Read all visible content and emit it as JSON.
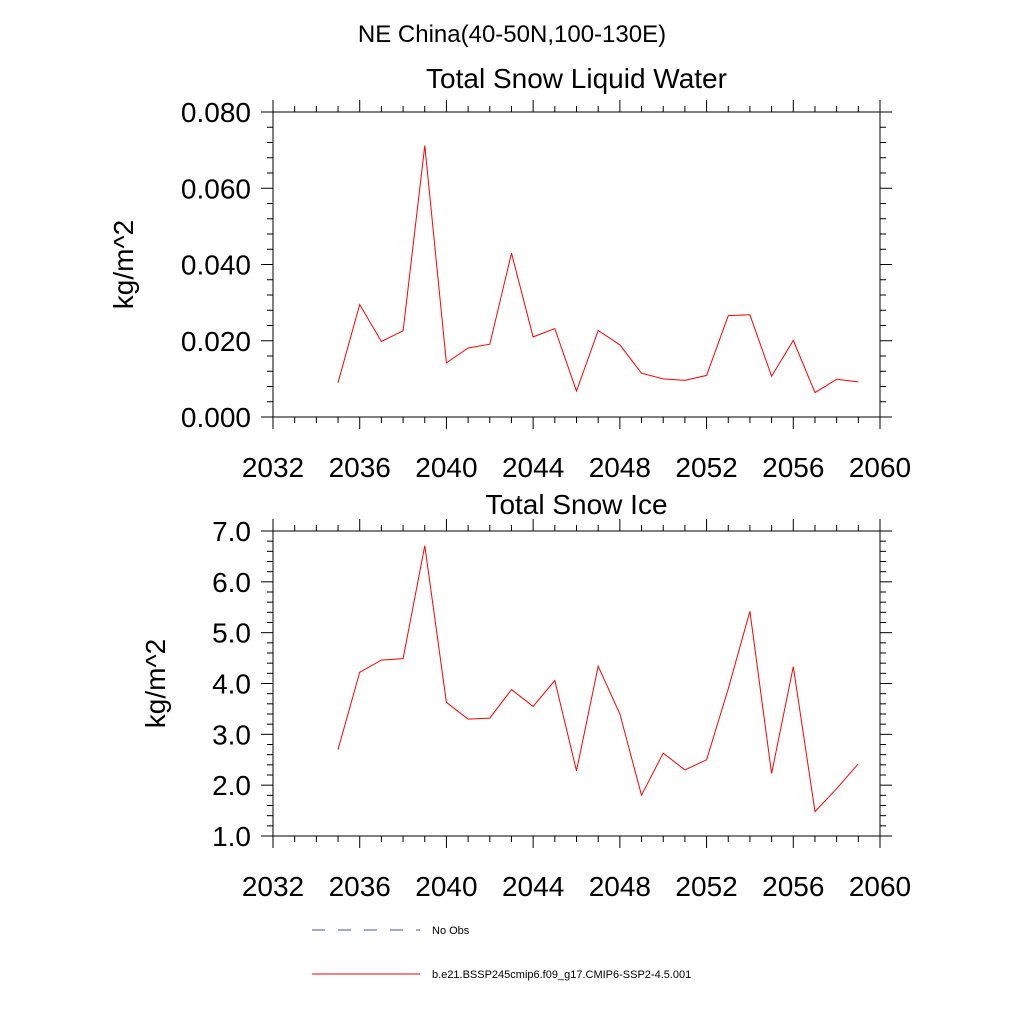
{
  "figure": {
    "suptitle": "NE China(40-50N,100-130E)"
  },
  "legend": {
    "entries": [
      {
        "label": "No Obs",
        "color": "#4a5a8a",
        "style": "dashed"
      },
      {
        "label": "b.e21.BSSP245cmip6.f09_g17.CMIP6-SSP2-4.5.001",
        "color": "#ff0000",
        "style": "solid"
      }
    ]
  },
  "chart_data": [
    {
      "type": "line",
      "title": "Total Snow Liquid Water",
      "ylabel": "kg/m^2",
      "xlabel": "",
      "xlim": [
        2032,
        2060
      ],
      "ylim": [
        0.0,
        0.08
      ],
      "xticks": [
        2032,
        2036,
        2040,
        2044,
        2048,
        2052,
        2056,
        2060
      ],
      "xtick_labels": [
        "2032",
        "2036",
        "2040",
        "2044",
        "2048",
        "2052",
        "2056",
        "2060"
      ],
      "yticks": [
        0.0,
        0.02,
        0.04,
        0.06,
        0.08
      ],
      "ytick_labels": [
        "0.000",
        "0.020",
        "0.040",
        "0.060",
        "0.080"
      ],
      "grid": false,
      "series": [
        {
          "name": "b.e21.BSSP245cmip6.f09_g17.CMIP6-SSP2-4.5.001",
          "color": "#ff0000",
          "x": [
            2035,
            2036,
            2037,
            2038,
            2039,
            2040,
            2041,
            2042,
            2043,
            2044,
            2045,
            2046,
            2047,
            2048,
            2049,
            2050,
            2051,
            2052,
            2053,
            2054,
            2055,
            2056,
            2057,
            2058,
            2059
          ],
          "y": [
            0.009,
            0.0295,
            0.0198,
            0.0226,
            0.0712,
            0.0142,
            0.0181,
            0.0191,
            0.043,
            0.021,
            0.0232,
            0.0068,
            0.0227,
            0.0189,
            0.0115,
            0.01,
            0.0096,
            0.0109,
            0.0266,
            0.0268,
            0.0107,
            0.0201,
            0.0064,
            0.0099,
            0.0092
          ]
        }
      ]
    },
    {
      "type": "line",
      "title": "Total Snow Ice",
      "ylabel": "kg/m^2",
      "xlabel": "",
      "xlim": [
        2032,
        2060
      ],
      "ylim": [
        1.0,
        7.0
      ],
      "xticks": [
        2032,
        2036,
        2040,
        2044,
        2048,
        2052,
        2056,
        2060
      ],
      "xtick_labels": [
        "2032",
        "2036",
        "2040",
        "2044",
        "2048",
        "2052",
        "2056",
        "2060"
      ],
      "yticks": [
        1.0,
        2.0,
        3.0,
        4.0,
        5.0,
        6.0,
        7.0
      ],
      "ytick_labels": [
        "1.0",
        "2.0",
        "3.0",
        "4.0",
        "5.0",
        "6.0",
        "7.0"
      ],
      "grid": false,
      "series": [
        {
          "name": "b.e21.BSSP245cmip6.f09_g17.CMIP6-SSP2-4.5.001",
          "color": "#ff0000",
          "x": [
            2035,
            2036,
            2037,
            2038,
            2039,
            2040,
            2041,
            2042,
            2043,
            2044,
            2045,
            2046,
            2047,
            2048,
            2049,
            2050,
            2051,
            2052,
            2053,
            2054,
            2055,
            2056,
            2057,
            2058,
            2059
          ],
          "y": [
            2.7,
            4.22,
            4.46,
            4.49,
            6.71,
            3.63,
            3.3,
            3.32,
            3.88,
            3.55,
            4.06,
            2.28,
            4.34,
            3.4,
            1.8,
            2.63,
            2.3,
            2.5,
            3.9,
            5.42,
            2.23,
            4.33,
            1.48,
            1.93,
            2.42
          ]
        }
      ]
    }
  ]
}
